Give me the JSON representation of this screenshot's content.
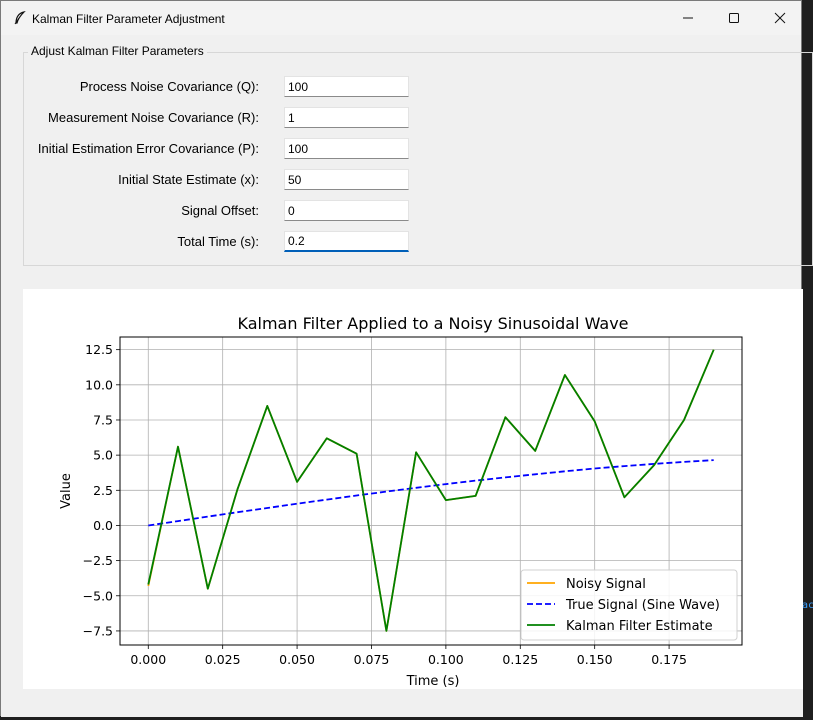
{
  "window": {
    "title": "Kalman Filter Parameter Adjustment",
    "feather_icon": "tk-feather-icon",
    "buttons": [
      "minimize",
      "maximize",
      "close"
    ]
  },
  "background": {
    "snippet": "ac"
  },
  "params": {
    "frame_label": "Adjust Kalman Filter Parameters",
    "fields": [
      {
        "label": "Process Noise Covariance (Q):",
        "value": "100"
      },
      {
        "label": "Measurement Noise Covariance (R):",
        "value": "1"
      },
      {
        "label": "Initial Estimation Error Covariance (P):",
        "value": "100"
      },
      {
        "label": "Initial State Estimate (x):",
        "value": "50"
      },
      {
        "label": "Signal Offset:",
        "value": "0"
      },
      {
        "label": "Total Time (s):",
        "value": "0.2"
      }
    ]
  },
  "chart_data": {
    "type": "line",
    "title": "Kalman Filter Applied to a Noisy Sinusoidal Wave",
    "xlabel": "Time (s)",
    "ylabel": "Value",
    "xlim": [
      -0.0095,
      0.1995
    ],
    "ylim": [
      -8.5,
      13.4
    ],
    "xticks": [
      0.0,
      0.025,
      0.05,
      0.075,
      0.1,
      0.125,
      0.15,
      0.175
    ],
    "xtick_labels": [
      "0.000",
      "0.025",
      "0.050",
      "0.075",
      "0.100",
      "0.125",
      "0.150",
      "0.175"
    ],
    "yticks": [
      -7.5,
      -5.0,
      -2.5,
      0.0,
      2.5,
      5.0,
      7.5,
      10.0,
      12.5
    ],
    "ytick_labels": [
      "−7.5",
      "−5.0",
      "−2.5",
      "0.0",
      "2.5",
      "5.0",
      "7.5",
      "10.0",
      "12.5"
    ],
    "grid": true,
    "legend_position": "lower right",
    "x": [
      0.0,
      0.01,
      0.02,
      0.03,
      0.04,
      0.05,
      0.06,
      0.07,
      0.08,
      0.09,
      0.1,
      0.11,
      0.12,
      0.13,
      0.14,
      0.15,
      0.16,
      0.17,
      0.18,
      0.19
    ],
    "series": [
      {
        "name": "Noisy Signal",
        "color": "#ffa500",
        "style": "solid",
        "values": [
          -4.3,
          5.6,
          -4.5,
          2.6,
          8.5,
          3.1,
          6.2,
          5.1,
          -7.5,
          5.2,
          1.8,
          2.1,
          7.7,
          5.3,
          10.7,
          7.4,
          2.0,
          4.3,
          7.5,
          12.5
        ]
      },
      {
        "name": "True Signal (Sine Wave)",
        "color": "#0000ff",
        "style": "dashed",
        "values": [
          0.0,
          0.31,
          0.63,
          0.94,
          1.24,
          1.55,
          1.84,
          2.13,
          2.41,
          2.68,
          2.94,
          3.19,
          3.42,
          3.64,
          3.85,
          4.05,
          4.22,
          4.38,
          4.52,
          4.65
        ]
      },
      {
        "name": "Kalman Filter Estimate",
        "color": "#008000",
        "style": "solid",
        "values": [
          -4.2,
          5.6,
          -4.5,
          2.6,
          8.5,
          3.1,
          6.2,
          5.1,
          -7.5,
          5.2,
          1.8,
          2.1,
          7.7,
          5.3,
          10.7,
          7.4,
          2.0,
          4.3,
          7.5,
          12.5
        ]
      }
    ]
  }
}
